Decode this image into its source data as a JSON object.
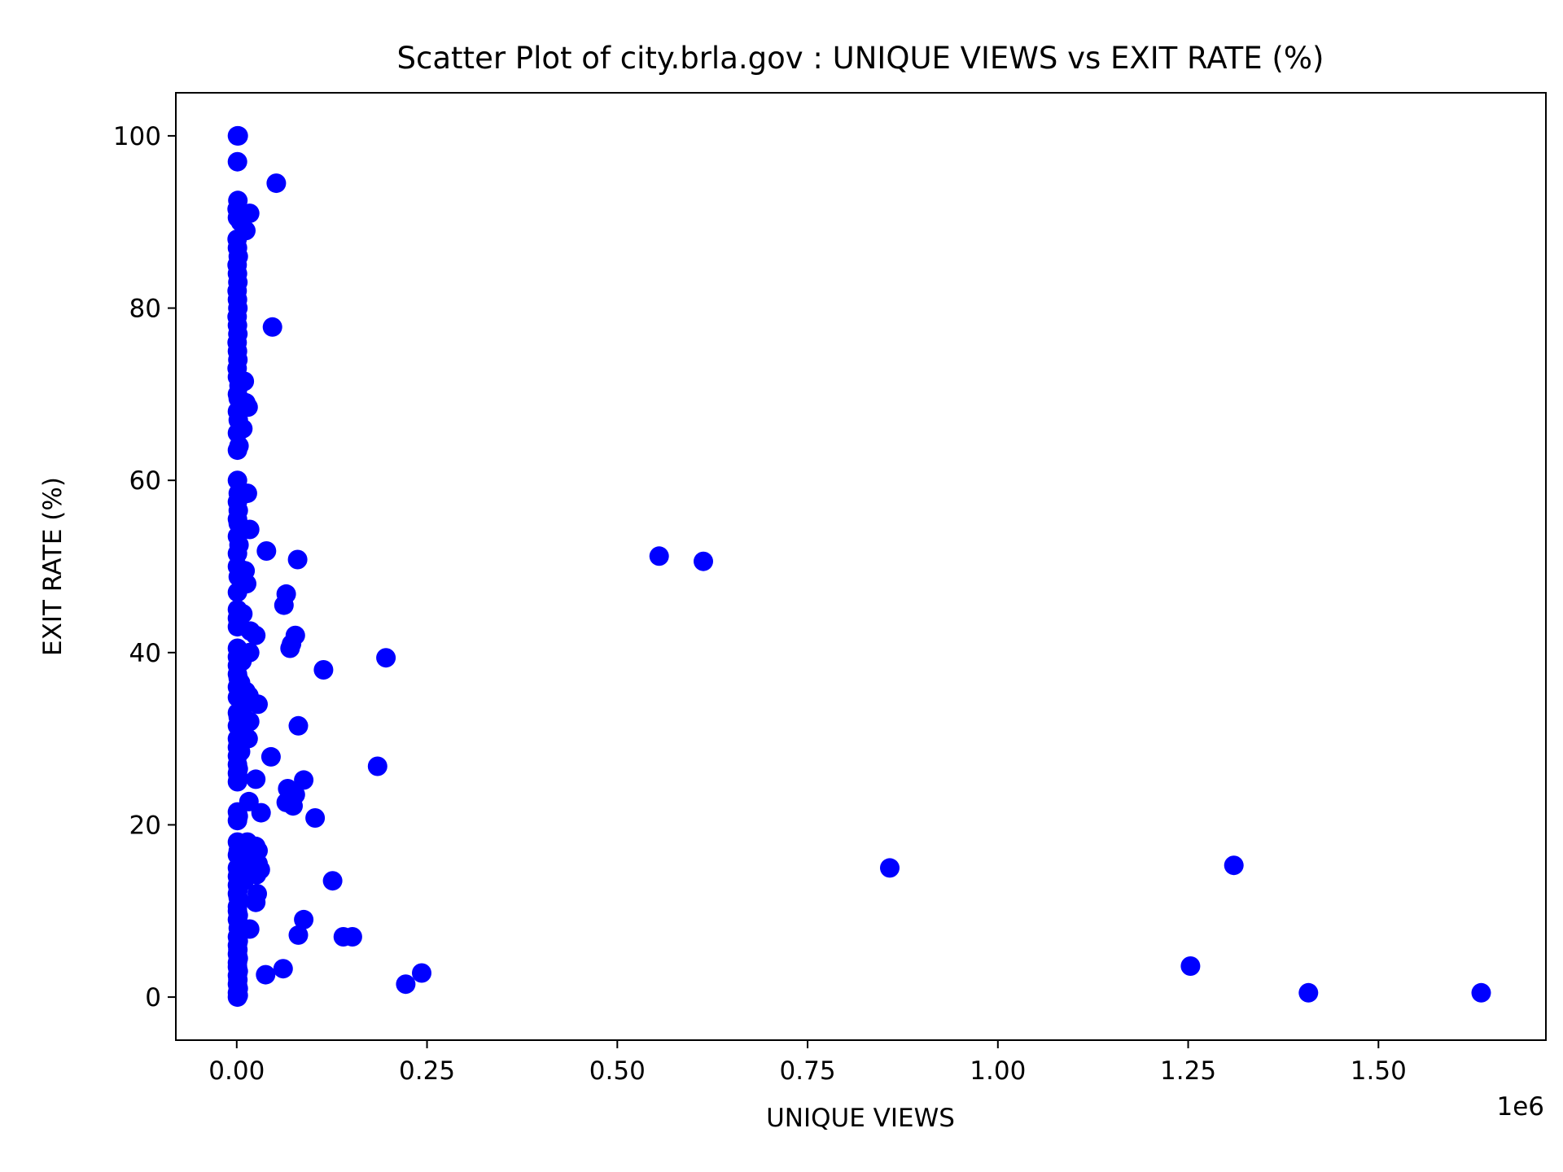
{
  "chart_data": {
    "type": "scatter",
    "title": "Scatter Plot of city.brla.gov : UNIQUE VIEWS vs EXIT RATE (%)",
    "xlabel": "UNIQUE VIEWS",
    "ylabel": "EXIT RATE (%)",
    "x_offset_text": "1e6",
    "x_scale_factor": 1000000,
    "xlim": [
      -80000,
      1720000
    ],
    "ylim": [
      -5,
      105
    ],
    "xticks": [
      0,
      250000,
      500000,
      750000,
      1000000,
      1250000,
      1500000
    ],
    "xtick_labels": [
      "0.00",
      "0.25",
      "0.50",
      "0.75",
      "1.00",
      "1.25",
      "1.50"
    ],
    "yticks": [
      0,
      20,
      40,
      60,
      80,
      100
    ],
    "ytick_labels": [
      "0",
      "20",
      "40",
      "60",
      "80",
      "100"
    ],
    "grid": false,
    "legend": "none",
    "marker_color": "#0000ff",
    "series": [
      {
        "points": [
          [
            1000,
            100
          ],
          [
            2000,
            100
          ],
          [
            1000,
            97
          ],
          [
            1500,
            92.5
          ],
          [
            500,
            91.5
          ],
          [
            1000,
            90.5
          ],
          [
            5000,
            90
          ],
          [
            17000,
            91
          ],
          [
            12000,
            89
          ],
          [
            52000,
            94.5
          ],
          [
            47000,
            77.8
          ],
          [
            500,
            88
          ],
          [
            1000,
            87
          ],
          [
            2000,
            86
          ],
          [
            500,
            85
          ],
          [
            1000,
            84
          ],
          [
            1500,
            83
          ],
          [
            500,
            82
          ],
          [
            1000,
            81
          ],
          [
            1500,
            80
          ],
          [
            500,
            79
          ],
          [
            1000,
            78
          ],
          [
            1500,
            77
          ],
          [
            500,
            76
          ],
          [
            1000,
            75
          ],
          [
            1500,
            74
          ],
          [
            500,
            73
          ],
          [
            1000,
            72
          ],
          [
            10000,
            71.5
          ],
          [
            3000,
            71
          ],
          [
            1000,
            70
          ],
          [
            2000,
            69.5
          ],
          [
            12000,
            69
          ],
          [
            15000,
            68.5
          ],
          [
            1000,
            68
          ],
          [
            2000,
            67
          ],
          [
            8000,
            66
          ],
          [
            1000,
            65.5
          ],
          [
            3000,
            64
          ],
          [
            1000,
            63.5
          ],
          [
            1000,
            60
          ],
          [
            2000,
            58.5
          ],
          [
            14000,
            58.5
          ],
          [
            1000,
            57.5
          ],
          [
            2000,
            56.5
          ],
          [
            1000,
            55.5
          ],
          [
            2000,
            55
          ],
          [
            17000,
            54.3
          ],
          [
            1000,
            53.5
          ],
          [
            3000,
            52.5
          ],
          [
            1000,
            51.5
          ],
          [
            39000,
            51.8
          ],
          [
            80000,
            50.8
          ],
          [
            1000,
            50
          ],
          [
            11000,
            49.5
          ],
          [
            2000,
            48.8
          ],
          [
            13000,
            48
          ],
          [
            1000,
            47
          ],
          [
            65000,
            46.8
          ],
          [
            62000,
            45.5
          ],
          [
            1000,
            45
          ],
          [
            8000,
            44.5
          ],
          [
            1000,
            44
          ],
          [
            2000,
            43.5
          ],
          [
            1000,
            43
          ],
          [
            18000,
            42.5
          ],
          [
            25000,
            42
          ],
          [
            77000,
            42
          ],
          [
            72000,
            41
          ],
          [
            70000,
            40.5
          ],
          [
            17000,
            40
          ],
          [
            1000,
            40.5
          ],
          [
            1000,
            39.5
          ],
          [
            7000,
            39
          ],
          [
            1000,
            38.5
          ],
          [
            114000,
            38
          ],
          [
            196000,
            39.4
          ],
          [
            1000,
            37.5
          ],
          [
            2000,
            37
          ],
          [
            5000,
            36.5
          ],
          [
            1000,
            36
          ],
          [
            12000,
            35.5
          ],
          [
            16000,
            35
          ],
          [
            1000,
            34.8
          ],
          [
            28000,
            34
          ],
          [
            8000,
            33.5
          ],
          [
            1000,
            33
          ],
          [
            2000,
            32.5
          ],
          [
            17000,
            32
          ],
          [
            1000,
            31.5
          ],
          [
            81000,
            31.5
          ],
          [
            8000,
            30.5
          ],
          [
            1000,
            30
          ],
          [
            15000,
            30
          ],
          [
            2000,
            29.5
          ],
          [
            1000,
            29
          ],
          [
            5000,
            28.5
          ],
          [
            1000,
            28
          ],
          [
            45000,
            27.9
          ],
          [
            185000,
            26.8
          ],
          [
            1000,
            27
          ],
          [
            2000,
            26.5
          ],
          [
            1000,
            26
          ],
          [
            2000,
            25.5
          ],
          [
            25000,
            25.3
          ],
          [
            88000,
            25.2
          ],
          [
            1000,
            25
          ],
          [
            67000,
            24.2
          ],
          [
            77000,
            23.5
          ],
          [
            65000,
            22.6
          ],
          [
            74000,
            22.2
          ],
          [
            16000,
            22.7
          ],
          [
            1000,
            21.5
          ],
          [
            32000,
            21.4
          ],
          [
            2000,
            21
          ],
          [
            103000,
            20.8
          ],
          [
            1000,
            20.5
          ],
          [
            1000,
            18
          ],
          [
            14000,
            18
          ],
          [
            25000,
            17.5
          ],
          [
            2000,
            17
          ],
          [
            28000,
            17
          ],
          [
            1000,
            16.5
          ],
          [
            20000,
            16.3
          ],
          [
            5000,
            16
          ],
          [
            28000,
            15.5
          ],
          [
            1000,
            15
          ],
          [
            12000,
            15
          ],
          [
            31000,
            14.8
          ],
          [
            2000,
            14.5
          ],
          [
            26000,
            14.2
          ],
          [
            1000,
            14
          ],
          [
            126000,
            13.5
          ],
          [
            10000,
            13.5
          ],
          [
            1000,
            13
          ],
          [
            2000,
            12.5
          ],
          [
            27000,
            12
          ],
          [
            1000,
            12
          ],
          [
            2000,
            11.5
          ],
          [
            25000,
            11
          ],
          [
            1000,
            10.5
          ],
          [
            1000,
            10
          ],
          [
            2000,
            9.5
          ],
          [
            88000,
            9
          ],
          [
            1000,
            9
          ],
          [
            17000,
            7.9
          ],
          [
            2000,
            8
          ],
          [
            81000,
            7.2
          ],
          [
            140000,
            7
          ],
          [
            152000,
            7
          ],
          [
            1000,
            7
          ],
          [
            2000,
            6.5
          ],
          [
            1000,
            6
          ],
          [
            1500,
            5.5
          ],
          [
            1000,
            5
          ],
          [
            2000,
            4.5
          ],
          [
            1000,
            4
          ],
          [
            61000,
            3.3
          ],
          [
            38000,
            2.6
          ],
          [
            243000,
            2.8
          ],
          [
            222000,
            1.5
          ],
          [
            1000,
            3.5
          ],
          [
            2000,
            3
          ],
          [
            1000,
            2.5
          ],
          [
            1500,
            2
          ],
          [
            1000,
            1.5
          ],
          [
            2000,
            1
          ],
          [
            1000,
            0.5
          ],
          [
            2000,
            0.2
          ],
          [
            1000,
            0
          ],
          [
            555000,
            51.2
          ],
          [
            613000,
            50.6
          ],
          [
            858000,
            15
          ],
          [
            1310000,
            15.3
          ],
          [
            1253000,
            3.6
          ],
          [
            1408000,
            0.5
          ],
          [
            1635000,
            0.5
          ]
        ]
      }
    ]
  }
}
